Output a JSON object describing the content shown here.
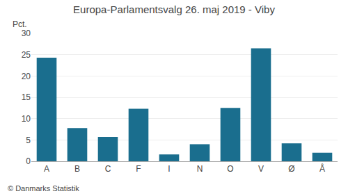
{
  "chart_data": {
    "type": "bar",
    "title": "Europa-Parlamentsvalg 26. maj 2019 - Viby",
    "categories": [
      "A",
      "B",
      "C",
      "F",
      "I",
      "N",
      "O",
      "V",
      "Ø",
      "Å"
    ],
    "values": [
      24.3,
      7.8,
      5.7,
      12.3,
      1.6,
      4.0,
      12.5,
      26.5,
      4.2,
      2.0
    ],
    "color": "#1a6e8e",
    "ylabel": "Pct.",
    "footer": "© Danmarks Statistik",
    "ylim": [
      0,
      30
    ],
    "yticks": [
      0,
      5,
      10,
      15,
      20,
      25,
      30
    ],
    "grid": true
  }
}
